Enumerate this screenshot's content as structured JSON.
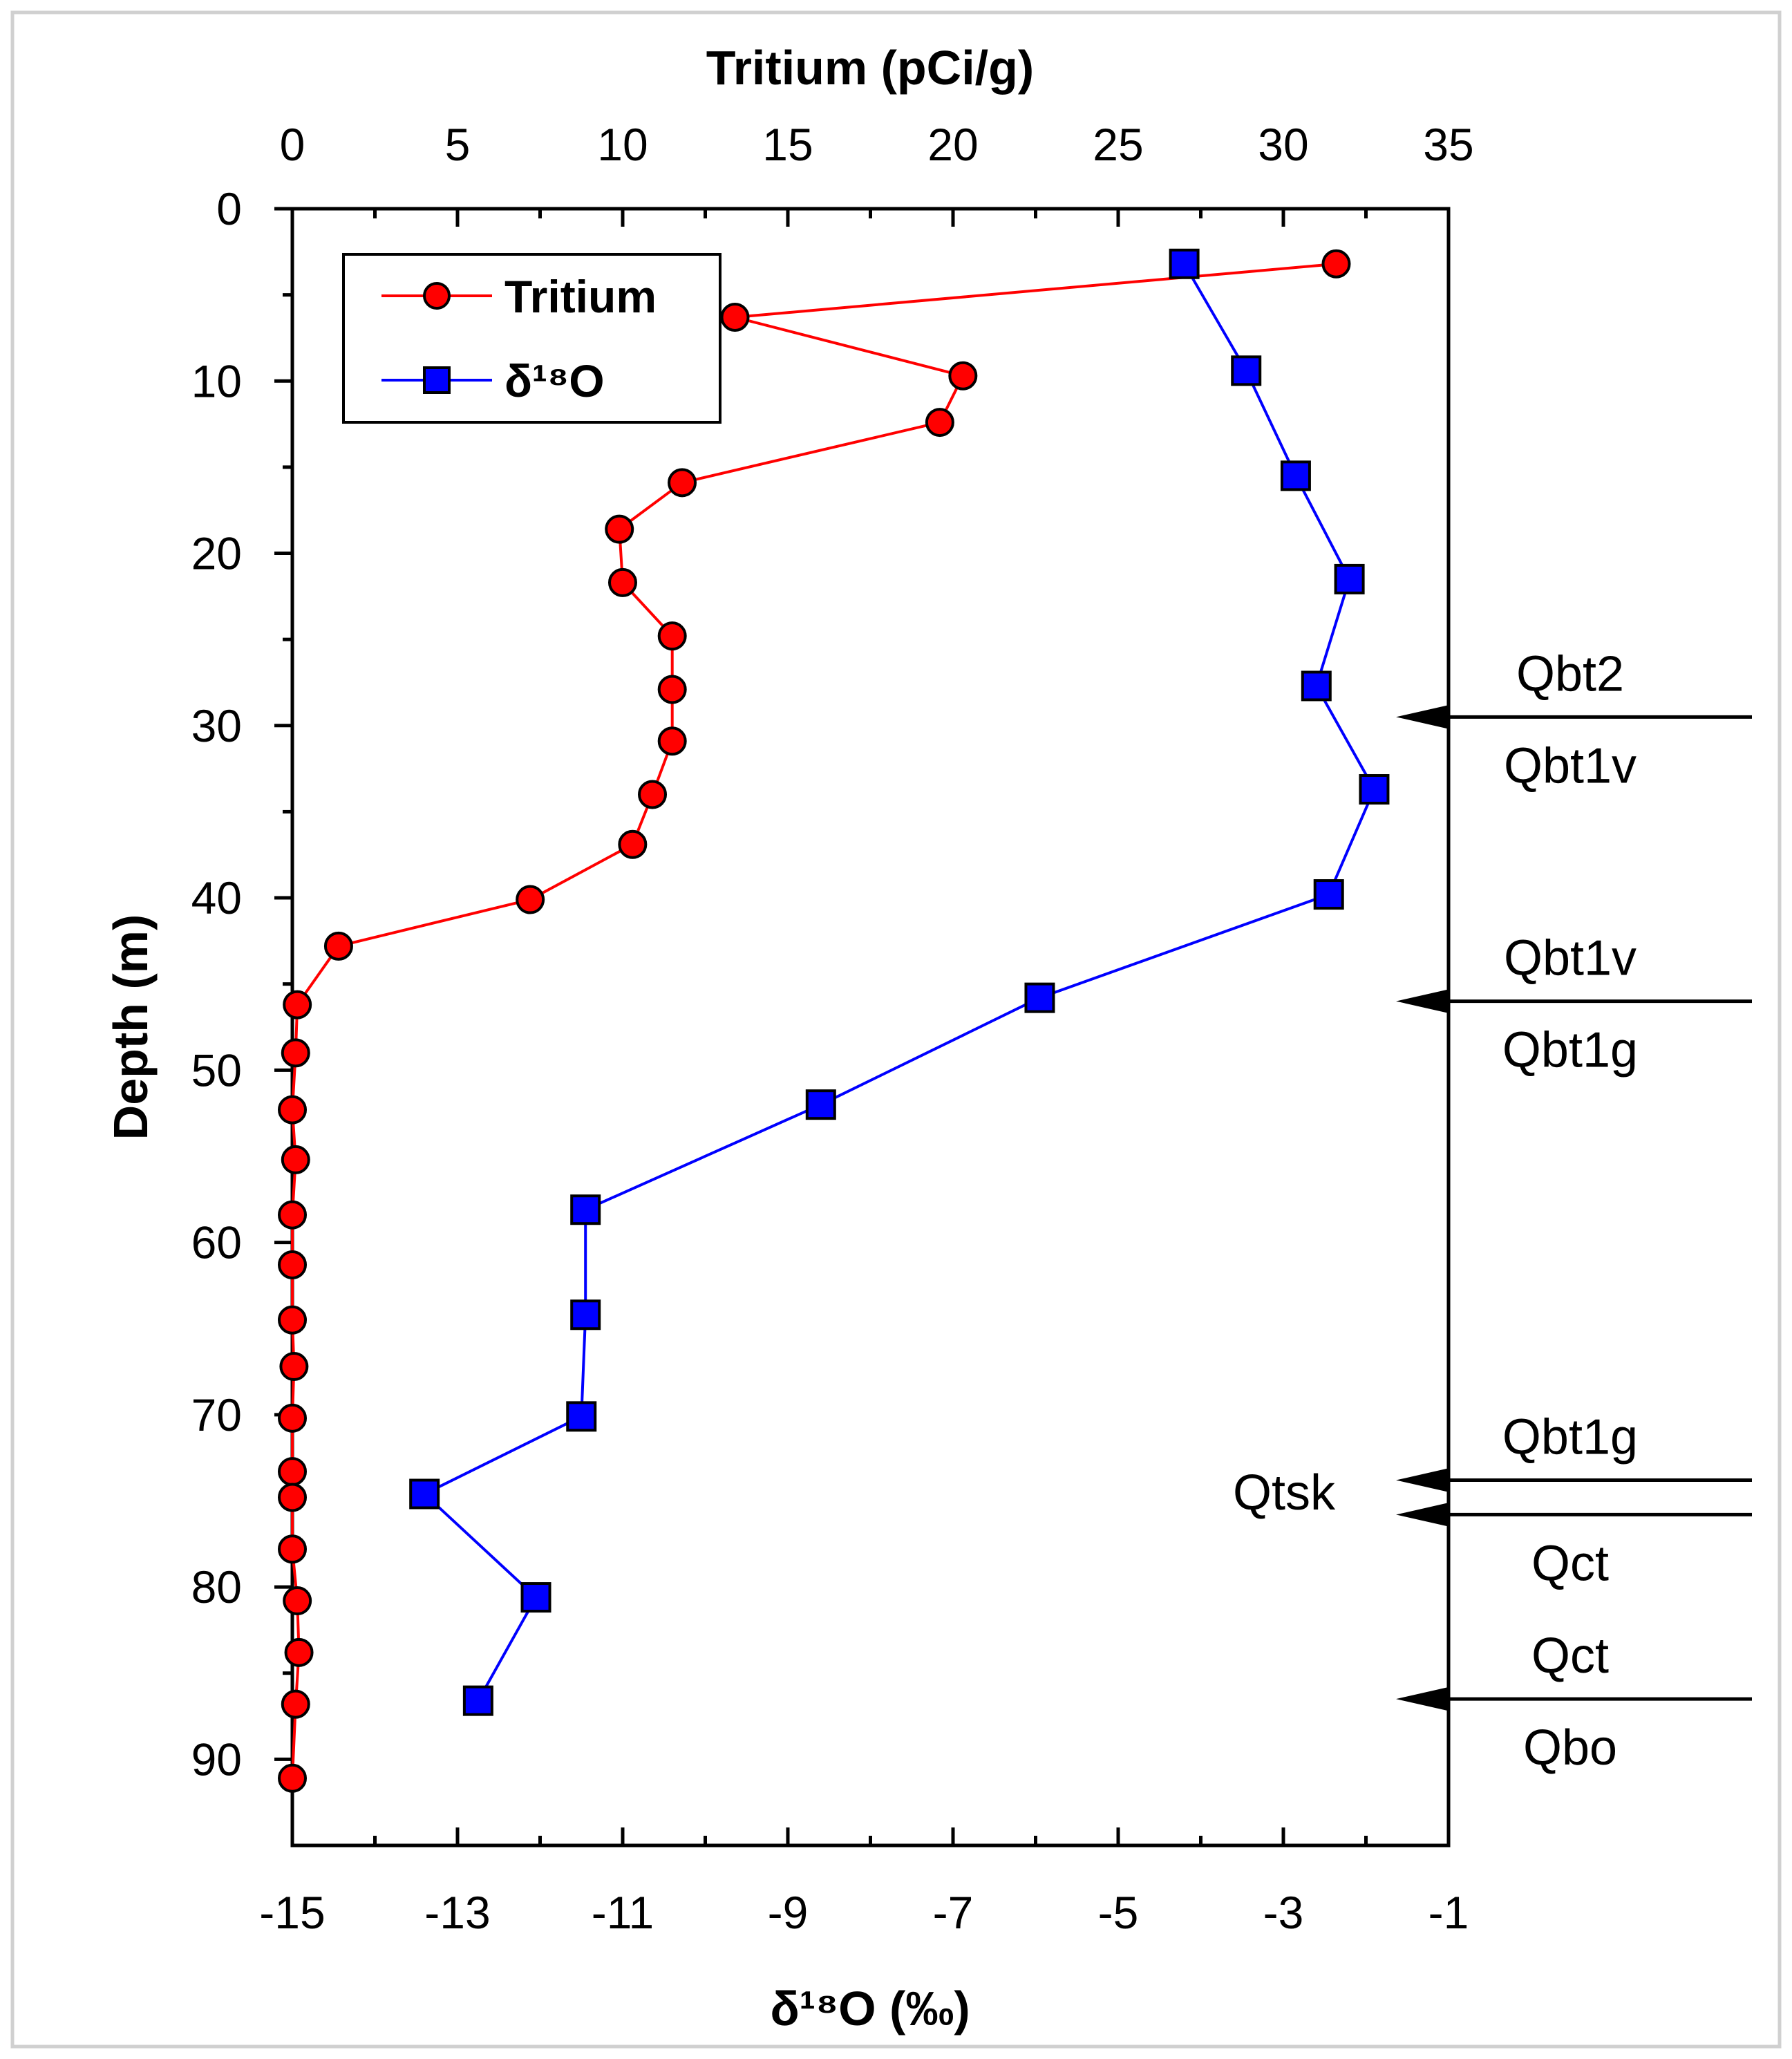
{
  "chart_data": {
    "type": "scatter",
    "top_axis": {
      "label": "Tritium (pCi/g)",
      "range": [
        0,
        35
      ],
      "ticks": [
        0,
        5,
        10,
        15,
        20,
        25,
        30,
        35
      ],
      "tick_labels": [
        "0",
        "5",
        "10",
        "15",
        "20",
        "25",
        "30",
        "35"
      ]
    },
    "bottom_axis": {
      "label": "δ¹⁸O (‰)",
      "range": [
        -15,
        -1
      ],
      "ticks": [
        -15,
        -13,
        -11,
        -9,
        -7,
        -5,
        -3,
        -1
      ],
      "tick_labels": [
        "-15",
        "-13",
        "-11",
        "-9",
        "-7",
        "-5",
        "-3",
        "-1"
      ]
    },
    "y_axis": {
      "label": "Depth (m)",
      "range": [
        0,
        95
      ],
      "inverted": true,
      "ticks": [
        0,
        10,
        20,
        30,
        40,
        50,
        60,
        70,
        80,
        90
      ],
      "tick_labels": [
        "0",
        "10",
        "20",
        "30",
        "40",
        "50",
        "60",
        "70",
        "80",
        "90"
      ]
    },
    "grid": false,
    "legend": {
      "position": "top-left",
      "entries": [
        "Tritium",
        "δ¹⁸O"
      ]
    },
    "series": [
      {
        "name": "Tritium",
        "axis": "top",
        "color": "#ff0000",
        "marker": "circle",
        "points": [
          {
            "x": 31.6,
            "y": 3.2
          },
          {
            "x": 13.4,
            "y": 6.3
          },
          {
            "x": 20.3,
            "y": 9.7
          },
          {
            "x": 19.6,
            "y": 12.4
          },
          {
            "x": 11.8,
            "y": 15.9
          },
          {
            "x": 9.9,
            "y": 18.6
          },
          {
            "x": 10.0,
            "y": 21.7
          },
          {
            "x": 11.5,
            "y": 24.8
          },
          {
            "x": 11.5,
            "y": 27.9
          },
          {
            "x": 11.5,
            "y": 30.9
          },
          {
            "x": 10.9,
            "y": 34.0
          },
          {
            "x": 10.3,
            "y": 36.9
          },
          {
            "x": 7.2,
            "y": 40.1
          },
          {
            "x": 1.4,
            "y": 42.8
          },
          {
            "x": 0.15,
            "y": 46.2
          },
          {
            "x": 0.1,
            "y": 49.0
          },
          {
            "x": 0.0,
            "y": 52.3
          },
          {
            "x": 0.1,
            "y": 55.2
          },
          {
            "x": 0.0,
            "y": 58.4
          },
          {
            "x": 0.0,
            "y": 61.3
          },
          {
            "x": 0.0,
            "y": 64.5
          },
          {
            "x": 0.05,
            "y": 67.2
          },
          {
            "x": 0.0,
            "y": 70.2
          },
          {
            "x": 0.0,
            "y": 73.3
          },
          {
            "x": 0.0,
            "y": 74.8
          },
          {
            "x": 0.0,
            "y": 77.8
          },
          {
            "x": 0.15,
            "y": 80.8
          },
          {
            "x": 0.2,
            "y": 83.8
          },
          {
            "x": 0.1,
            "y": 86.8
          },
          {
            "x": 0.0,
            "y": 91.1
          }
        ]
      },
      {
        "name": "δ¹⁸O",
        "axis": "bottom",
        "color": "#0000ff",
        "marker": "square",
        "points": [
          {
            "x": -4.2,
            "y": 3.2
          },
          {
            "x": -3.45,
            "y": 9.4
          },
          {
            "x": -2.85,
            "y": 15.5
          },
          {
            "x": -2.2,
            "y": 21.5
          },
          {
            "x": -2.6,
            "y": 27.7
          },
          {
            "x": -1.9,
            "y": 33.7
          },
          {
            "x": -2.45,
            "y": 39.8
          },
          {
            "x": -5.95,
            "y": 45.8
          },
          {
            "x": -8.6,
            "y": 52.0
          },
          {
            "x": -11.45,
            "y": 58.1
          },
          {
            "x": -11.45,
            "y": 64.2
          },
          {
            "x": -11.5,
            "y": 70.1
          },
          {
            "x": -13.4,
            "y": 74.6
          },
          {
            "x": -12.05,
            "y": 80.6
          },
          {
            "x": -12.75,
            "y": 86.6
          }
        ]
      }
    ],
    "annotations": [
      {
        "depth": 29.5,
        "above": "Qbt2",
        "below": "Qbt1v"
      },
      {
        "depth": 46.0,
        "above": "Qbt1v",
        "below": "Qbt1g"
      },
      {
        "depth": 73.8,
        "above": "Qbt1g",
        "below": ""
      },
      {
        "depth": 75.8,
        "above": "",
        "below": "Qct"
      },
      {
        "depth": 86.5,
        "above": "Qct",
        "below": "Qbo"
      }
    ],
    "side_labels": [
      {
        "depth": 74.5,
        "text": "Qtsk"
      }
    ]
  }
}
